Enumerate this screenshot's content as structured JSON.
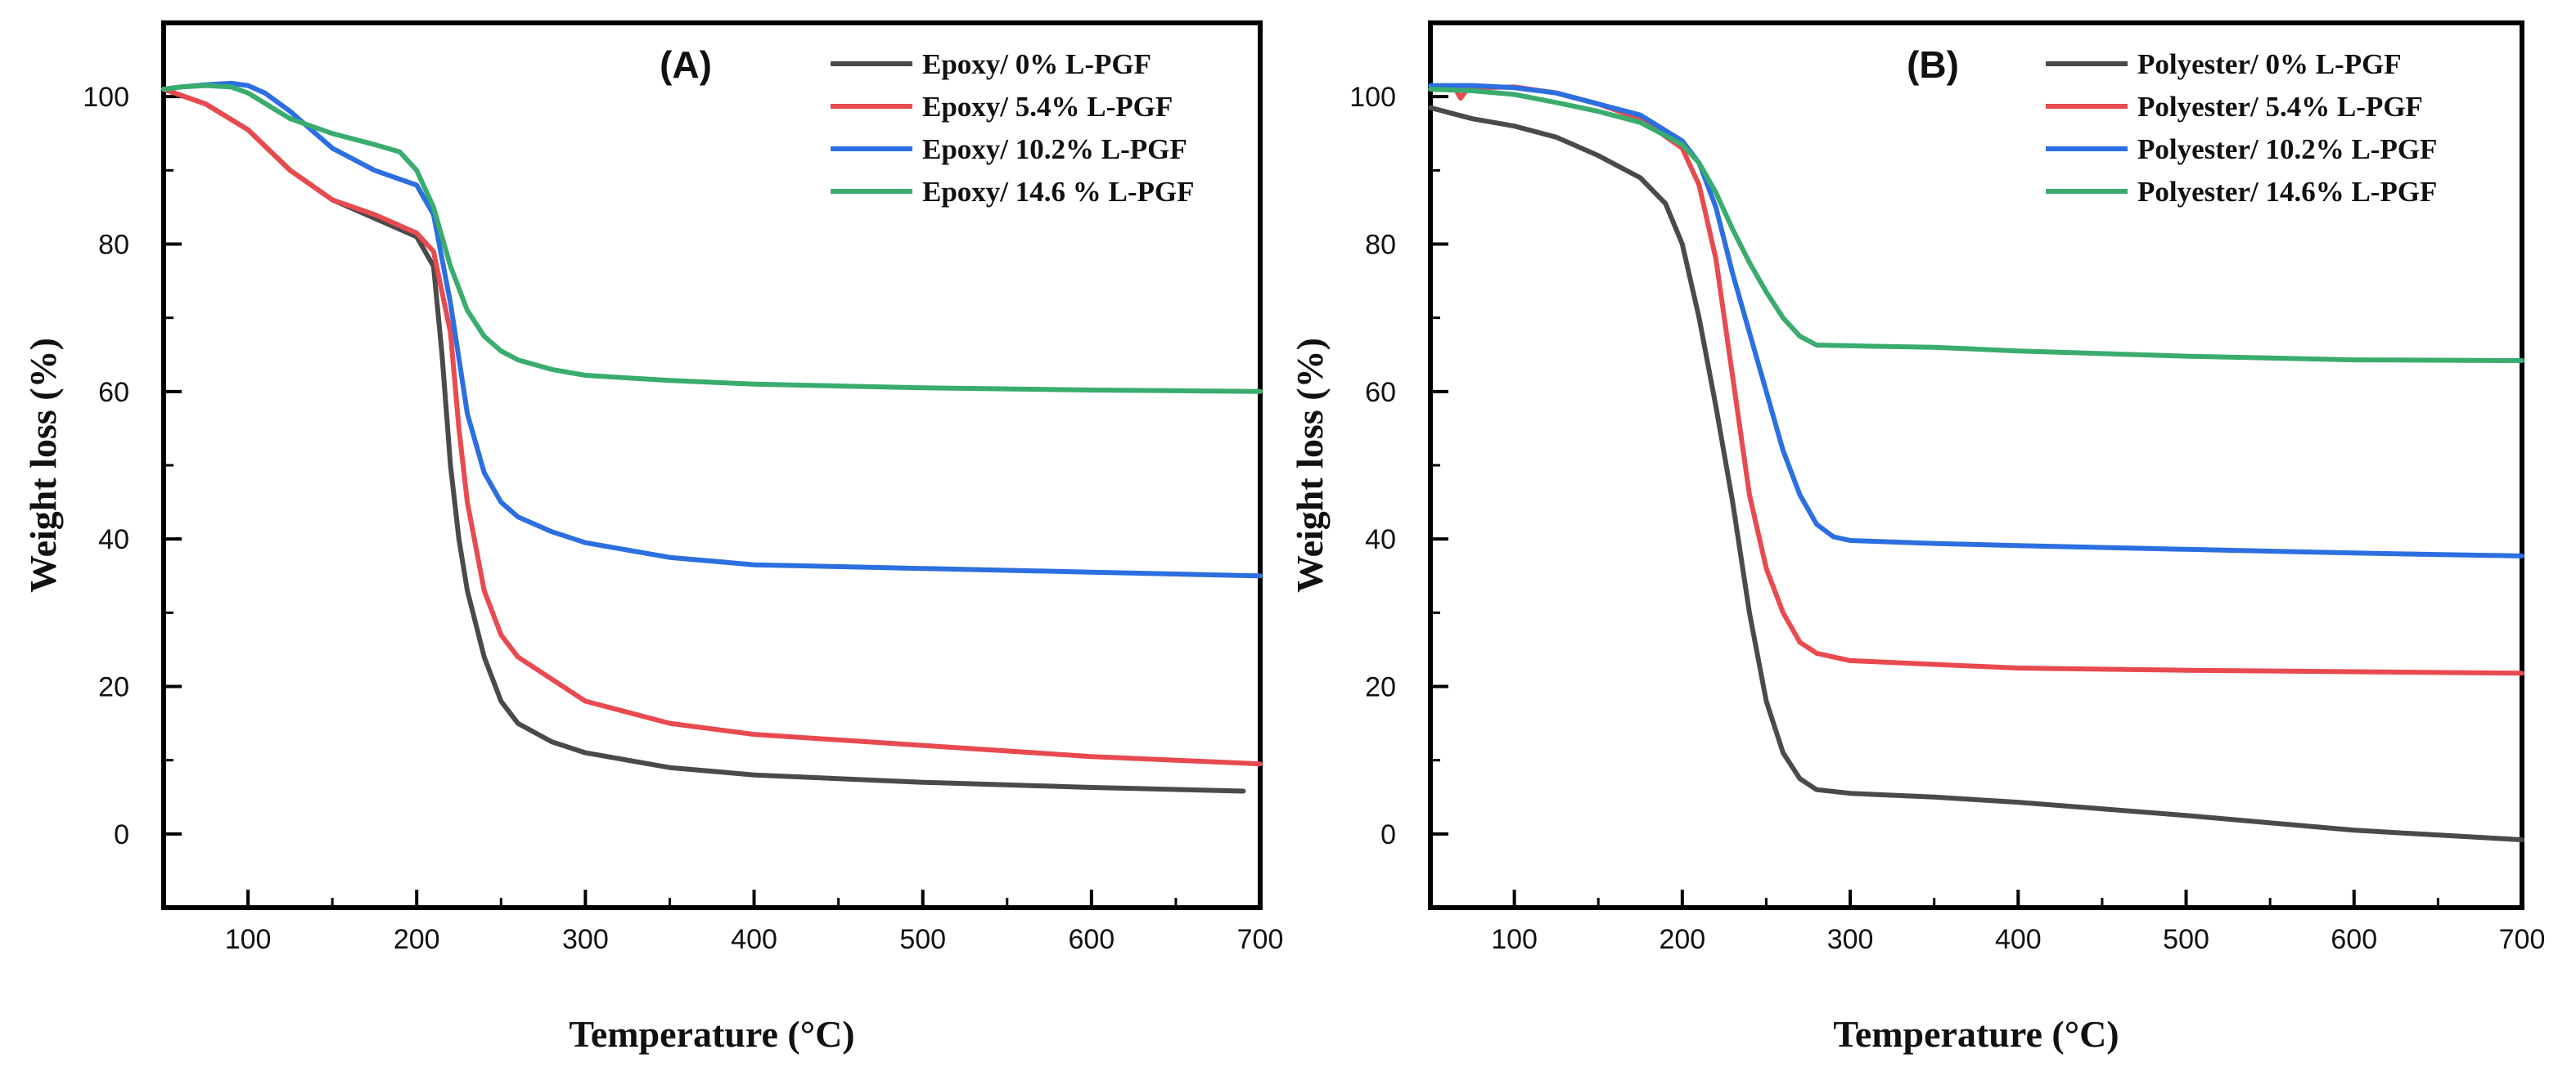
{
  "chart_data": [
    {
      "type": "line",
      "panel_label": "(A)",
      "xlabel": "Temperature (°C)",
      "ylabel": "Weight loss (%)",
      "xlim": [
        50,
        700
      ],
      "ylim": [
        -10,
        110
      ],
      "xticks": [
        100,
        200,
        300,
        400,
        500,
        600,
        700
      ],
      "yticks": [
        0,
        20,
        40,
        60,
        80,
        100
      ],
      "legend_position": "top-right",
      "series": [
        {
          "name": "Epoxy/ 0% L-PGF",
          "color": "#4a4a4a",
          "x": [
            50,
            75,
            100,
            125,
            150,
            175,
            200,
            210,
            215,
            220,
            225,
            230,
            240,
            250,
            260,
            280,
            300,
            350,
            400,
            500,
            600,
            690
          ],
          "y": [
            101,
            99,
            95.5,
            90,
            86,
            83.5,
            81,
            77,
            65,
            50,
            40,
            33,
            24,
            18,
            15,
            12.5,
            11,
            9,
            8,
            7,
            6.3,
            5.8
          ]
        },
        {
          "name": "Epoxy/ 5.4% L-PGF",
          "color": "#e84a4f",
          "x": [
            50,
            75,
            100,
            125,
            150,
            175,
            200,
            210,
            220,
            225,
            230,
            240,
            250,
            260,
            280,
            300,
            350,
            400,
            500,
            600,
            700
          ],
          "y": [
            101,
            99,
            95.5,
            90,
            86,
            84,
            81.5,
            79,
            68,
            55,
            45,
            33,
            27,
            24,
            21,
            18,
            15,
            13.5,
            12,
            10.5,
            9.5
          ]
        },
        {
          "name": "Epoxy/ 10.2% L-PGF",
          "color": "#2c6fe0",
          "x": [
            50,
            60,
            75,
            90,
            100,
            110,
            125,
            150,
            175,
            200,
            210,
            220,
            230,
            240,
            250,
            260,
            280,
            300,
            350,
            400,
            500,
            600,
            700
          ],
          "y": [
            101,
            101.3,
            101.6,
            101.8,
            101.5,
            100.5,
            98,
            93,
            90,
            88,
            84,
            72,
            57,
            49,
            45,
            43,
            41,
            39.5,
            37.5,
            36.5,
            36,
            35.5,
            35
          ]
        },
        {
          "name": "Epoxy/ 14.6 % L-PGF",
          "color": "#3aac6e",
          "x": [
            50,
            60,
            75,
            90,
            100,
            125,
            150,
            175,
            190,
            200,
            210,
            220,
            230,
            240,
            250,
            260,
            280,
            300,
            350,
            400,
            500,
            600,
            700
          ],
          "y": [
            101,
            101.3,
            101.5,
            101.3,
            100.5,
            97,
            95,
            93.5,
            92.5,
            90,
            85,
            77,
            71,
            67.5,
            65.5,
            64.3,
            63,
            62.2,
            61.5,
            61,
            60.5,
            60.2,
            60
          ]
        }
      ]
    },
    {
      "type": "line",
      "panel_label": "(B)",
      "xlabel": "Temperature (°C)",
      "ylabel": "Weight loss (%)",
      "xlim": [
        50,
        700
      ],
      "ylim": [
        -10,
        110
      ],
      "xticks": [
        100,
        200,
        300,
        400,
        500,
        600,
        700
      ],
      "yticks": [
        0,
        20,
        40,
        60,
        80,
        100
      ],
      "legend_position": "top-right",
      "series": [
        {
          "name": "Polyester/ 0% L-PGF",
          "color": "#4a4a4a",
          "x": [
            50,
            75,
            100,
            125,
            150,
            175,
            190,
            200,
            210,
            220,
            230,
            240,
            250,
            260,
            270,
            280,
            300,
            350,
            400,
            500,
            600,
            700
          ],
          "y": [
            98.5,
            97,
            96,
            94.5,
            92,
            89,
            85.5,
            80,
            70,
            58,
            45,
            30,
            18,
            11,
            7.5,
            6,
            5.5,
            5,
            4.3,
            2.5,
            0.5,
            -0.8
          ]
        },
        {
          "name": "Polyester/ 5.4% L-PGF",
          "color": "#e84a4f",
          "x": [
            50,
            65,
            68,
            72,
            75,
            100,
            125,
            150,
            175,
            200,
            210,
            220,
            230,
            240,
            250,
            260,
            270,
            280,
            300,
            350,
            400,
            500,
            600,
            700
          ],
          "y": [
            101,
            101,
            99.8,
            101,
            101.2,
            101.3,
            100.5,
            99,
            97,
            93,
            88,
            78,
            62,
            46,
            36,
            30,
            26,
            24.5,
            23.5,
            23,
            22.5,
            22.2,
            22,
            21.8
          ]
        },
        {
          "name": "Polyester/ 10.2% L-PGF",
          "color": "#2c6fe0",
          "x": [
            50,
            75,
            100,
            125,
            150,
            175,
            200,
            210,
            220,
            230,
            240,
            250,
            260,
            270,
            280,
            290,
            300,
            350,
            400,
            500,
            600,
            700
          ],
          "y": [
            101.5,
            101.5,
            101.2,
            100.5,
            99,
            97.5,
            94,
            91,
            85,
            76,
            68,
            60,
            52,
            46,
            42,
            40.3,
            39.8,
            39.4,
            39.1,
            38.6,
            38.1,
            37.7
          ]
        },
        {
          "name": "Polyester/ 14.6% L-PGF",
          "color": "#3aac6e",
          "x": [
            50,
            75,
            100,
            125,
            150,
            175,
            200,
            210,
            220,
            230,
            240,
            250,
            260,
            270,
            280,
            300,
            350,
            400,
            500,
            600,
            700
          ],
          "y": [
            101,
            100.8,
            100.3,
            99.2,
            98,
            96.5,
            93.5,
            91,
            87,
            82,
            77.5,
            73.5,
            70,
            67.5,
            66.3,
            66.2,
            66,
            65.5,
            64.8,
            64.3,
            64.2
          ]
        }
      ]
    }
  ]
}
